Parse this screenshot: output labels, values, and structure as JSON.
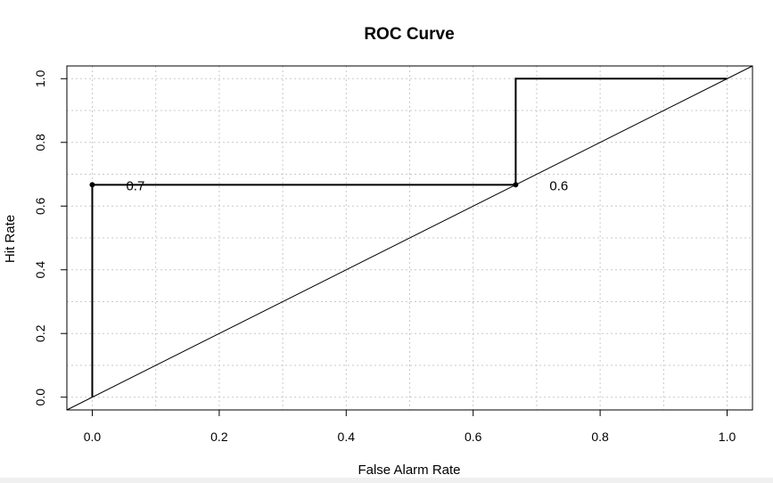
{
  "chart_data": {
    "type": "line",
    "title": "ROC Curve",
    "xlabel": "False Alarm Rate",
    "ylabel": "Hit Rate",
    "xlim": [
      -0.04,
      1.04
    ],
    "ylim": [
      -0.04,
      1.04
    ],
    "x_ticks": [
      0.0,
      0.2,
      0.4,
      0.6,
      0.8,
      1.0
    ],
    "y_ticks": [
      0.0,
      0.2,
      0.4,
      0.6,
      0.8,
      1.0
    ],
    "x_tick_labels": [
      "0.0",
      "0.2",
      "0.4",
      "0.6",
      "0.8",
      "1.0"
    ],
    "y_tick_labels": [
      "0.0",
      "0.2",
      "0.4",
      "0.6",
      "0.8",
      "1.0"
    ],
    "grid": true,
    "series": [
      {
        "curve": "step",
        "x": [
          0.0,
          0.0,
          0.667,
          0.667,
          1.0
        ],
        "y": [
          0.0,
          0.667,
          0.667,
          1.0,
          1.0
        ]
      }
    ],
    "reference_line": {
      "x": [
        -0.04,
        1.04
      ],
      "y": [
        -0.04,
        1.04
      ]
    },
    "threshold_points": [
      {
        "x": 0.0,
        "y": 0.667,
        "label": "0.7"
      },
      {
        "x": 0.667,
        "y": 0.667,
        "label": "0.6"
      }
    ]
  }
}
